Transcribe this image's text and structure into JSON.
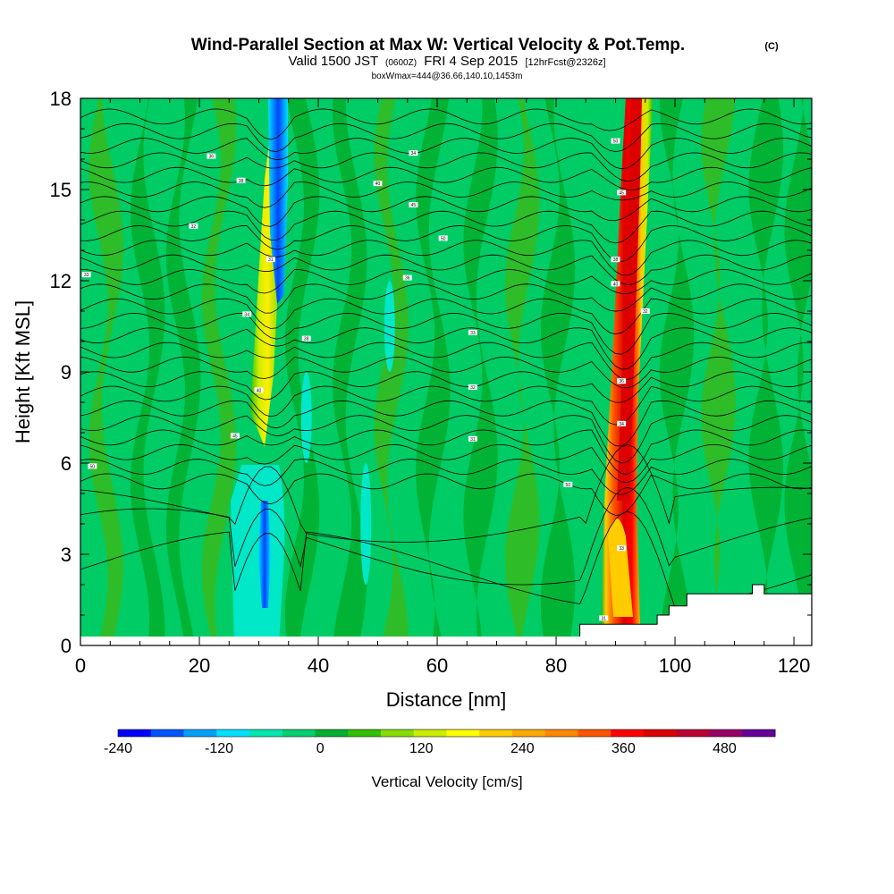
{
  "title": {
    "main": "Wind-Parallel Section at Max W: Vertical Velocity & Pot.Temp.",
    "copyright": "(C)",
    "valid_a": "Valid 1500 JST",
    "valid_zulu": "(0600Z)",
    "valid_b": "FRI 4 Sep 2015",
    "forecast": "[12hrFcst@2326z]",
    "box": "boxWmax=444@36.66,140.10,1453m"
  },
  "chart_data": {
    "type": "heatmap",
    "xlabel": "Distance [nm]",
    "ylabel": "Height [Kft MSL]",
    "xlim": [
      0,
      123
    ],
    "ylim": [
      0,
      18
    ],
    "xticks": [
      0,
      20,
      40,
      60,
      80,
      100,
      120
    ],
    "yticks": [
      0,
      3,
      6,
      9,
      12,
      15,
      18
    ],
    "colorbar": {
      "label": "Vertical Velocity [cm/s]",
      "min": -240,
      "max": 540,
      "step": 40,
      "tick_values": [
        -240,
        -120,
        0,
        120,
        240,
        360,
        480
      ],
      "colors": [
        "#0000ff",
        "#0055ff",
        "#00a0ff",
        "#00e0ff",
        "#00e8b0",
        "#00d070",
        "#00b030",
        "#33c000",
        "#88dd00",
        "#ccee00",
        "#ffff00",
        "#ffcc00",
        "#ffaa00",
        "#ff8800",
        "#ff5500",
        "#ff0000",
        "#dd0000",
        "#bb0033",
        "#990066",
        "#660099"
      ]
    },
    "features": [
      {
        "name": "downdraft core",
        "x": 31,
        "y_range": [
          1,
          5.5
        ],
        "w_min": -180
      },
      {
        "name": "downdraft aloft",
        "x": 33,
        "y_range": [
          10,
          18
        ],
        "w_min": -200
      },
      {
        "name": "updraft aloft",
        "x": 31,
        "y_range": [
          6,
          16
        ],
        "w_max": 200
      },
      {
        "name": "main updraft",
        "x": 91.5,
        "y_range": [
          1,
          18
        ],
        "w_max": 444
      }
    ],
    "terrain": [
      [
        84,
        0.3
      ],
      [
        84,
        0.7
      ],
      [
        97,
        0.7
      ],
      [
        97,
        1.0
      ],
      [
        99,
        1.0
      ],
      [
        99,
        1.3
      ],
      [
        102,
        1.3
      ],
      [
        102,
        1.7
      ],
      [
        113,
        1.7
      ],
      [
        113,
        2.0
      ],
      [
        115,
        2.0
      ],
      [
        115,
        1.7
      ],
      [
        123,
        1.7
      ]
    ],
    "contour_labels": [
      "50",
      "45",
      "40",
      "38",
      "36",
      "34",
      "33",
      "32",
      "31"
    ]
  }
}
